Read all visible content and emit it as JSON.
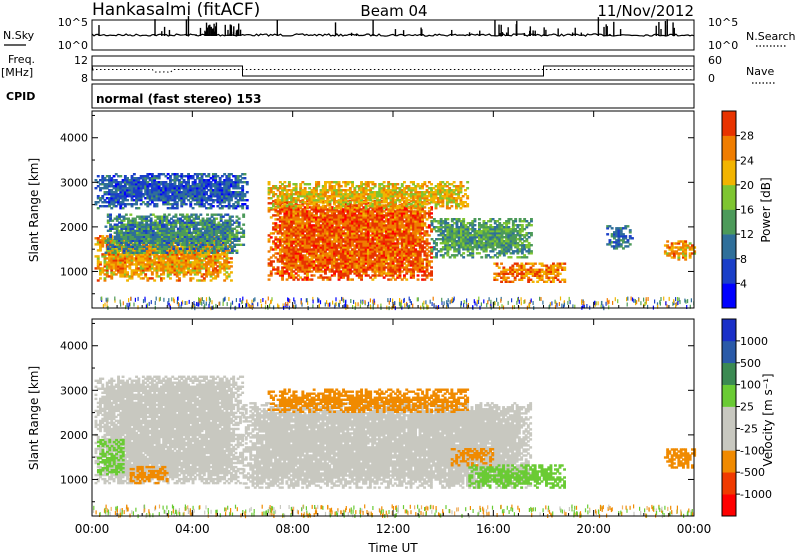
{
  "header": {
    "station": "Hankasalmi (fitACF)",
    "beam": "Beam 04",
    "date": "11/Nov/2012"
  },
  "noise_panel": {
    "left_label": "N.Sky",
    "left_ticks": [
      "10^5",
      "10^0"
    ],
    "right_label": "N.Search",
    "right_ticks": [
      "10^5",
      "10^0"
    ]
  },
  "freq_panel": {
    "left_label_top": "Freq.",
    "left_label_unit": "[MHz]",
    "left_ticks": [
      "12",
      "8"
    ],
    "right_label": "Nave",
    "right_ticks": [
      "60",
      "0"
    ]
  },
  "cpid": {
    "label": "CPID",
    "text": "normal (fast stereo) 153"
  },
  "colors": {
    "power": [
      "#0000ff",
      "#1a3fc8",
      "#2f6f9a",
      "#4c9a5a",
      "#7ec531",
      "#f2b400",
      "#f07d00",
      "#e83300",
      "#ff0000"
    ],
    "velocity": [
      "#ff0000",
      "#f03a00",
      "#f08a00",
      "#f0b060",
      "#c8c8c0",
      "#c8c8c0",
      "#6acb34",
      "#3b8a52",
      "#2a5aa8",
      "#1a30c8"
    ]
  },
  "chart_data": [
    {
      "type": "heatmap",
      "parameter": "Power",
      "xlabel": "",
      "ylabel": "Slant Range [km]",
      "xlim": [
        "00:00",
        "24:00"
      ],
      "ylim": [
        180,
        4600
      ],
      "yticks": [
        "1000",
        "2000",
        "3000",
        "4000"
      ],
      "colorbar": {
        "label": "Power [dB]",
        "ticks": [
          "4",
          "8",
          "12",
          "16",
          "20",
          "24",
          "28"
        ],
        "range": [
          0,
          32
        ]
      },
      "echo_regions": [
        {
          "t_start": 0.1,
          "t_end": 5.5,
          "range_low": 780,
          "range_high": 1800,
          "value": 24
        },
        {
          "t_start": 0.5,
          "t_end": 6.0,
          "range_low": 1400,
          "range_high": 2300,
          "value": 12
        },
        {
          "t_start": 0.1,
          "t_end": 6.2,
          "range_low": 2400,
          "range_high": 3200,
          "value": 8
        },
        {
          "t_start": 7.0,
          "t_end": 13.5,
          "range_low": 800,
          "range_high": 2600,
          "value": 28
        },
        {
          "t_start": 7.0,
          "t_end": 15.0,
          "range_low": 2400,
          "range_high": 3000,
          "value": 22
        },
        {
          "t_start": 13.5,
          "t_end": 17.5,
          "range_low": 1300,
          "range_high": 2200,
          "value": 14
        },
        {
          "t_start": 16.0,
          "t_end": 18.8,
          "range_low": 750,
          "range_high": 1200,
          "value": 26
        },
        {
          "t_start": 20.5,
          "t_end": 21.5,
          "range_low": 1500,
          "range_high": 2000,
          "value": 10
        },
        {
          "t_start": 22.8,
          "t_end": 24.0,
          "range_low": 1250,
          "range_high": 1700,
          "value": 24
        }
      ]
    },
    {
      "type": "heatmap",
      "parameter": "Velocity",
      "xlabel": "Time UT",
      "ylabel": "Slant Range [km]",
      "xlim": [
        "00:00",
        "24:00"
      ],
      "xticks": [
        "00:00",
        "04:00",
        "08:00",
        "12:00",
        "16:00",
        "20:00",
        "00:00"
      ],
      "ylim": [
        180,
        4600
      ],
      "yticks": [
        "1000",
        "2000",
        "3000",
        "4000"
      ],
      "colorbar": {
        "label": "Velocity [m s⁻¹]",
        "ticks": [
          "1000",
          "500",
          "100",
          "25",
          "-25",
          "-100",
          "-500",
          "-1000"
        ],
        "range": [
          -1250,
          1250
        ]
      },
      "echo_regions": [
        {
          "t_start": 0.1,
          "t_end": 6.0,
          "range_low": 900,
          "range_high": 3300,
          "value": 0
        },
        {
          "t_start": 6.0,
          "t_end": 17.5,
          "range_low": 800,
          "range_high": 2700,
          "value": 0
        },
        {
          "t_start": 0.2,
          "t_end": 1.2,
          "range_low": 1100,
          "range_high": 1900,
          "value": 150
        },
        {
          "t_start": 1.5,
          "t_end": 3.0,
          "range_low": 900,
          "range_high": 1300,
          "value": -150
        },
        {
          "t_start": 7.0,
          "t_end": 15.0,
          "range_low": 2500,
          "range_high": 3000,
          "value": -300
        },
        {
          "t_start": 14.3,
          "t_end": 16.0,
          "range_low": 1300,
          "range_high": 1700,
          "value": -300
        },
        {
          "t_start": 15.0,
          "t_end": 18.8,
          "range_low": 800,
          "range_high": 1300,
          "value": 200
        },
        {
          "t_start": 22.8,
          "t_end": 24.0,
          "range_low": 1250,
          "range_high": 1700,
          "value": -200
        }
      ]
    }
  ]
}
